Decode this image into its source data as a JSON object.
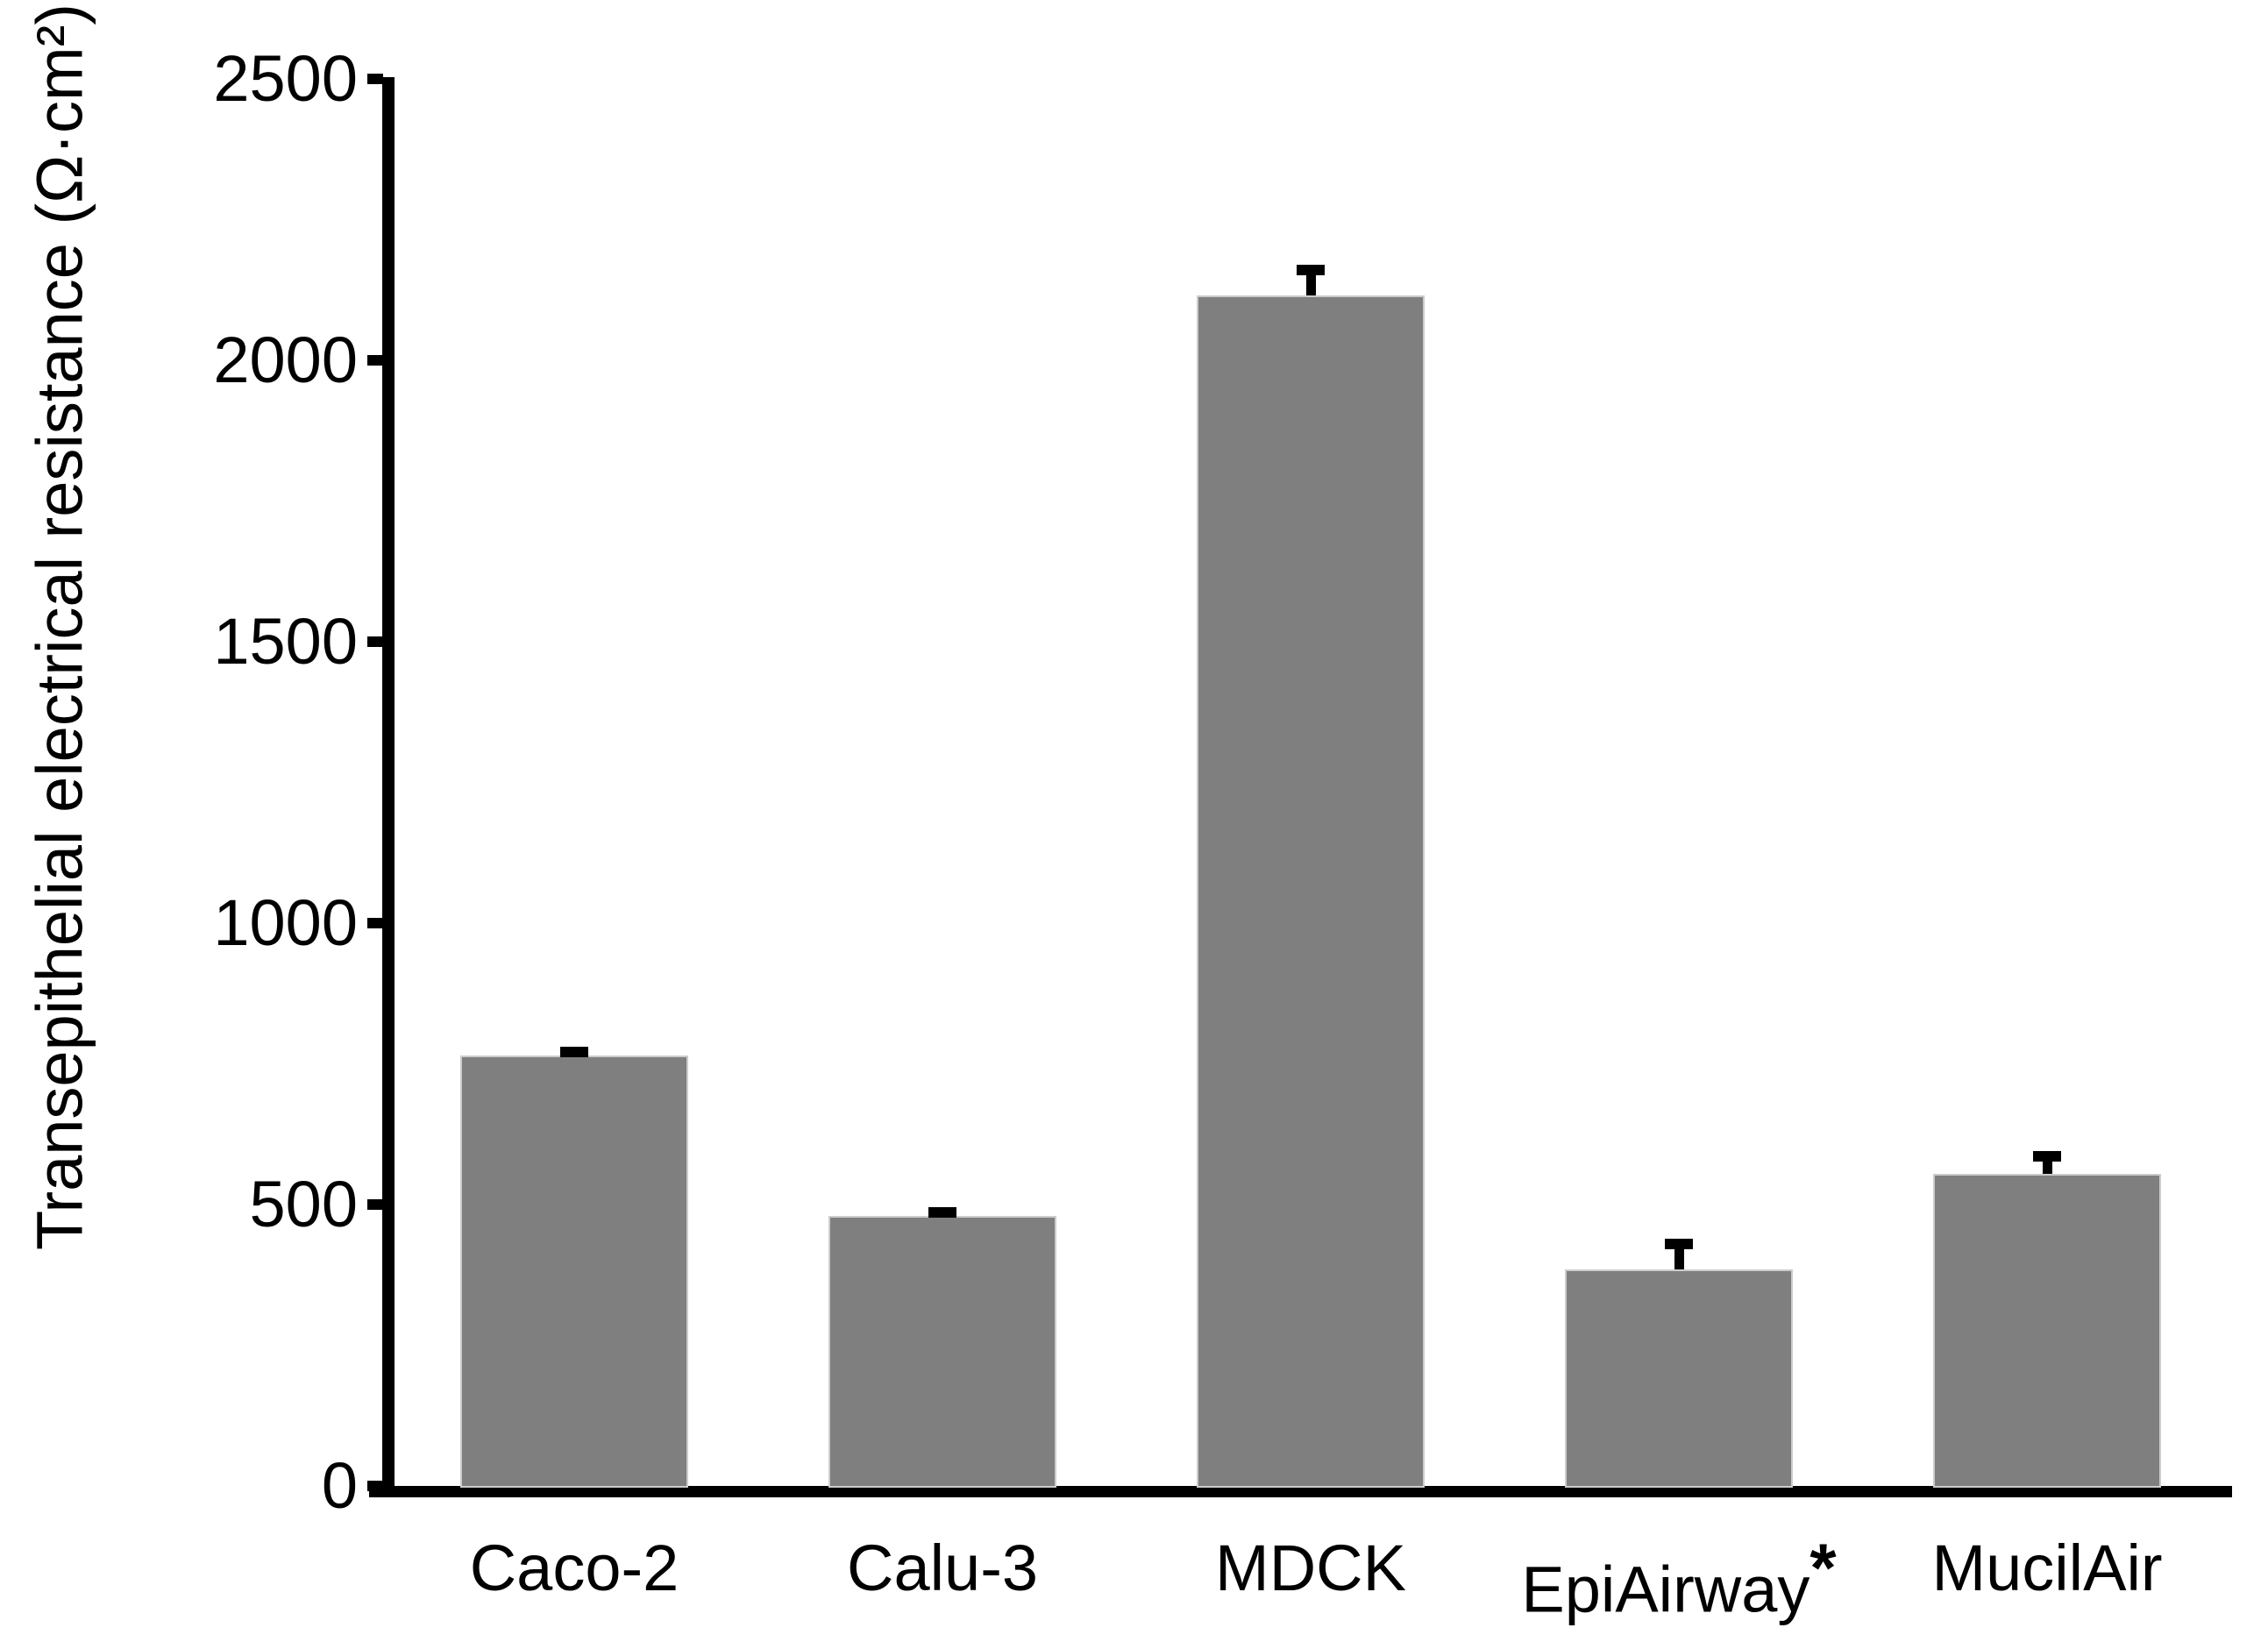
{
  "chart_data": {
    "type": "bar",
    "title": "",
    "xlabel": "",
    "ylabel": "Transepithelial electrical resistance (Ω·cm²)",
    "categories": [
      "Caco-2",
      "Calu-3",
      "MDCK",
      "EpiAirway",
      "MucilAir"
    ],
    "values": [
      765,
      480,
      2115,
      385,
      555
    ],
    "error_bars_plus": [
      15,
      15,
      55,
      55,
      40
    ],
    "significance": {
      "category": "EpiAirway",
      "symbol": "*"
    },
    "ylim": [
      0,
      2500
    ],
    "yticks": [
      0,
      500,
      1000,
      1500,
      2000,
      2500
    ],
    "grid": false,
    "legend": false,
    "bar_color": "#7f7f7f",
    "bar_border_color": "#cccccc",
    "error_bar_color": "#000000",
    "axis_color": "#000000",
    "text_color": "#000000",
    "background_color": "#ffffff"
  }
}
